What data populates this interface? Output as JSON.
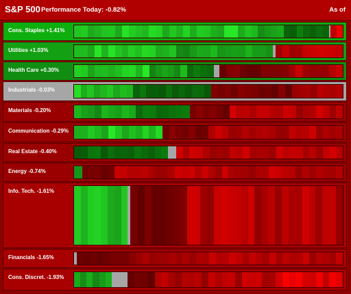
{
  "header": {
    "title": "S&P 500",
    "performance": "Performance Today: -0.82%",
    "as_of": "As of"
  },
  "colors": {
    "gain_dark": "#0b6e0b",
    "gain": "#19a319",
    "gain_bright": "#22cc22",
    "neutral": "#a6a6a6",
    "loss_dark": "#7a0000",
    "loss": "#b80000",
    "loss_bright": "#e00000"
  },
  "sectors": [
    {
      "label": "Cons. Staples +1.41%",
      "change": 1.41,
      "mix": [
        [
          "gb",
          0.66
        ],
        [
          "g",
          0.12
        ],
        [
          "gd",
          0.17
        ],
        [
          "n",
          0.005
        ],
        [
          "lb",
          0.045
        ]
      ]
    },
    {
      "label": "Utilities +1.03%",
      "change": 1.03,
      "mix": [
        [
          "gb",
          0.38
        ],
        [
          "g",
          0.36
        ],
        [
          "n",
          0.01
        ],
        [
          "l",
          0.25
        ]
      ]
    },
    {
      "label": "Health Care +0.30%",
      "change": 0.3,
      "mix": [
        [
          "gb",
          0.28
        ],
        [
          "g",
          0.14
        ],
        [
          "gd",
          0.1
        ],
        [
          "n",
          0.02
        ],
        [
          "ld",
          0.26
        ],
        [
          "l",
          0.2
        ]
      ]
    },
    {
      "label": "Industrials -0.03%",
      "change": -0.03,
      "mix": [
        [
          "gb",
          0.22
        ],
        [
          "gd",
          0.29
        ],
        [
          "ld",
          0.3
        ],
        [
          "l",
          0.19
        ]
      ]
    },
    {
      "label": "Materials -0.20%",
      "change": -0.2,
      "mix": [
        [
          "g",
          0.23
        ],
        [
          "gd",
          0.2
        ],
        [
          "ld",
          0.15
        ],
        [
          "l",
          0.42
        ]
      ]
    },
    {
      "label": "Communication -0.29%",
      "change": -0.29,
      "mix": [
        [
          "gb",
          0.33
        ],
        [
          "ld",
          0.17
        ],
        [
          "l",
          0.5
        ]
      ]
    },
    {
      "label": "Real Estate -0.40%",
      "change": -0.4,
      "mix": [
        [
          "gd",
          0.35
        ],
        [
          "n",
          0.03
        ],
        [
          "l",
          0.62
        ]
      ]
    },
    {
      "label": "Energy -0.74%",
      "change": -0.74,
      "mix": [
        [
          "g",
          0.03
        ],
        [
          "ld",
          0.12
        ],
        [
          "l",
          0.85
        ]
      ]
    },
    {
      "label": "Info. Tech. -1.61%",
      "change": -1.61,
      "mix": [
        [
          "gb",
          0.2
        ],
        [
          "n",
          0.01
        ],
        [
          "ld",
          0.21
        ],
        [
          "l",
          0.58
        ]
      ]
    },
    {
      "label": "Financials -1.65%",
      "change": -1.65,
      "mix": [
        [
          "n",
          0.01
        ],
        [
          "ld",
          0.22
        ],
        [
          "l",
          0.77
        ]
      ]
    },
    {
      "label": "Cons. Discret. -1.93%",
      "change": -1.93,
      "mix": [
        [
          "g",
          0.14
        ],
        [
          "n",
          0.06
        ],
        [
          "ld",
          0.1
        ],
        [
          "l",
          0.45
        ],
        [
          "lb",
          0.25
        ]
      ]
    }
  ]
}
